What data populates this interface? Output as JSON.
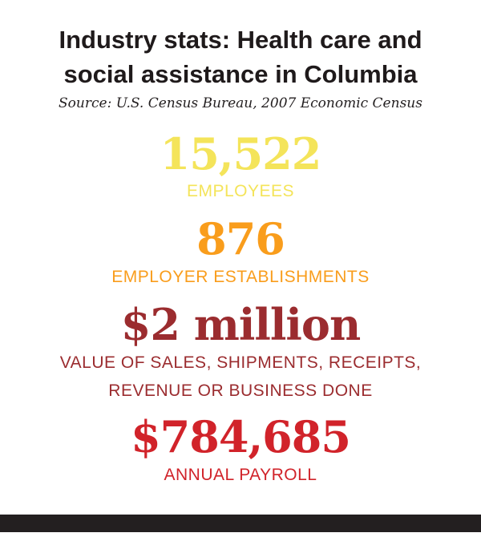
{
  "title_lines": [
    "Industry stats: Health care and",
    "social assistance in Columbia"
  ],
  "source": "Source: U.S. Census Bureau, 2007 Economic Census",
  "stats": [
    {
      "value": "15,522",
      "label_lines": [
        "EMPLOYEES"
      ],
      "color": "#f4e45a"
    },
    {
      "value": "876",
      "label_lines": [
        "EMPLOYER ESTABLISHMENTS"
      ],
      "color": "#f99d1c"
    },
    {
      "value": "$2 million",
      "label_lines": [
        "VALUE OF SALES, SHIPMENTS, RECEIPTS,",
        "REVENUE OR BUSINESS DONE"
      ],
      "color": "#9b2c2f"
    },
    {
      "value": "$784,685",
      "label_lines": [
        "ANNUAL PAYROLL"
      ],
      "color": "#d1232a"
    }
  ]
}
